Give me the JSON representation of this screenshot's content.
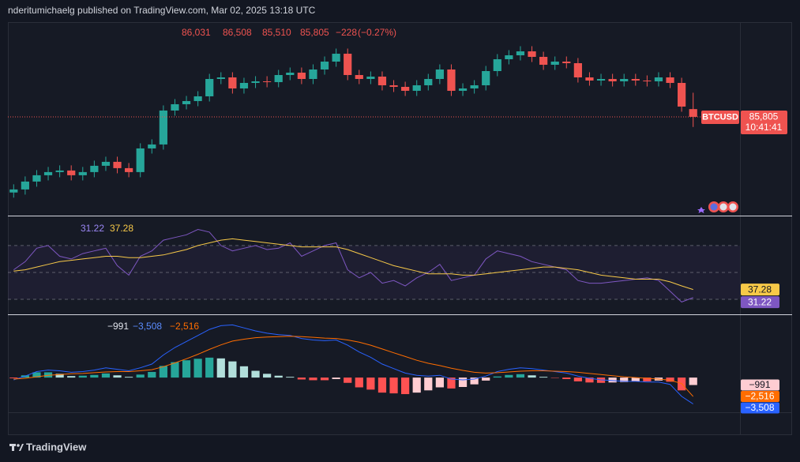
{
  "header": {
    "text": "nderitumichaelg published on TradingView.com, Mar 02, 2025 13:18 UTC"
  },
  "footer": {
    "brand": "TradingView"
  },
  "chart_data": [
    {
      "type": "candlestick",
      "symbol": "BTCUSD",
      "countdown": "10:41:41",
      "ohlc": {
        "open": {
          "value": 86031,
          "label": "86,031"
        },
        "high": {
          "value": 86508,
          "label": "86,508"
        },
        "low": {
          "value": 85510,
          "label": "85,510"
        },
        "close": {
          "value": 85805,
          "label": "85,805"
        }
      },
      "change": {
        "value": -228,
        "label": "−228"
      },
      "change_pct": {
        "value": -0.27,
        "label": "(−0.27%)"
      },
      "up_color": "#26a69a",
      "down_color": "#ef5350",
      "ylim": [
        82950,
        88520
      ],
      "open": [
        83600,
        83689,
        83919,
        84103,
        84195,
        84241,
        84103,
        84195,
        84379,
        84494,
        84310,
        84195,
        84885,
        85000,
        85989,
        86173,
        86265,
        86403,
        86909,
        86955,
        86633,
        86794,
        86840,
        86817,
        87024,
        87093,
        86909,
        87185,
        87415,
        87645,
        87024,
        86909,
        86978,
        86725,
        86679,
        86564,
        86725,
        86909,
        87185,
        86564,
        86633,
        86725,
        87139,
        87484,
        87599,
        87714,
        87553,
        87323,
        87415,
        87369,
        86955,
        86863,
        86909,
        86840,
        86909,
        86863,
        86840,
        86955,
        86794,
        86031
      ],
      "high": [
        83839,
        84069,
        84253,
        84345,
        84391,
        84391,
        84345,
        84529,
        84644,
        84644,
        84460,
        85035,
        85150,
        86139,
        86323,
        86415,
        86553,
        87059,
        87105,
        87105,
        86944,
        86990,
        86990,
        87174,
        87243,
        87243,
        87335,
        87565,
        87795,
        87795,
        87174,
        87128,
        87128,
        86875,
        86829,
        86875,
        87059,
        87335,
        87335,
        86783,
        86875,
        87289,
        87634,
        87749,
        87864,
        87864,
        87703,
        87565,
        87565,
        87519,
        87105,
        87059,
        87059,
        87059,
        87059,
        87013,
        87105,
        87105,
        86944,
        86508
      ],
      "low": [
        83450,
        83539,
        83769,
        83953,
        84045,
        83953,
        83953,
        84045,
        84229,
        84160,
        84045,
        84045,
        84735,
        84850,
        85839,
        86023,
        86115,
        86253,
        86759,
        86483,
        86483,
        86644,
        86667,
        86667,
        86874,
        86759,
        86759,
        87035,
        87265,
        86874,
        86759,
        86759,
        86575,
        86529,
        86414,
        86414,
        86575,
        86759,
        86414,
        86414,
        86483,
        86575,
        86989,
        87334,
        87449,
        87403,
        87173,
        87173,
        87219,
        86805,
        86713,
        86713,
        86690,
        86690,
        86713,
        86690,
        86690,
        86644,
        85954,
        85510
      ],
      "close": [
        83689,
        83919,
        84103,
        84195,
        84241,
        84103,
        84195,
        84379,
        84494,
        84310,
        84195,
        84885,
        85000,
        85989,
        86173,
        86265,
        86403,
        86909,
        86955,
        86633,
        86794,
        86840,
        86817,
        87024,
        87093,
        86909,
        87185,
        87415,
        87645,
        87024,
        86909,
        86978,
        86725,
        86679,
        86564,
        86725,
        86909,
        87185,
        86564,
        86633,
        86725,
        87139,
        87484,
        87599,
        87714,
        87553,
        87323,
        87415,
        87369,
        86955,
        86863,
        86909,
        86840,
        86909,
        86863,
        86840,
        86955,
        86794,
        86104,
        85805
      ]
    },
    {
      "type": "line",
      "ylim": [
        20,
        87
      ],
      "levels": [
        70,
        50,
        30
      ],
      "series": [
        {
          "color": "#7e57c2",
          "last": 31.22,
          "values": [
            52,
            58,
            68,
            70,
            62,
            60,
            64,
            66,
            68,
            55,
            48,
            62,
            66,
            74,
            76,
            78,
            82,
            80,
            70,
            66,
            68,
            70,
            67,
            68,
            72,
            62,
            66,
            70,
            72,
            52,
            46,
            50,
            42,
            44,
            40,
            46,
            50,
            56,
            44,
            46,
            48,
            60,
            66,
            64,
            62,
            58,
            56,
            54,
            52,
            44,
            42,
            42,
            43,
            44,
            45,
            46,
            44,
            36,
            28,
            31.22
          ]
        },
        {
          "color": "#f7c948",
          "last": 37.28,
          "values": [
            51,
            52,
            54,
            56,
            58,
            59,
            60,
            61,
            62,
            62,
            61,
            61,
            62,
            63,
            65,
            67,
            70,
            72,
            74,
            75,
            74,
            73,
            72,
            71,
            70,
            69,
            69,
            69,
            69,
            67,
            64,
            61,
            58,
            55,
            53,
            51,
            49,
            49,
            49,
            48,
            48,
            49,
            50,
            51,
            52,
            53,
            54,
            54,
            53,
            52,
            50,
            48,
            47,
            46,
            45,
            45,
            45,
            43,
            40,
            37.28
          ]
        }
      ]
    },
    {
      "type": "macd",
      "ylim": [
        -4400,
        8200
      ],
      "histogram": {
        "colors": [
          "#26a69a",
          "#b2dfdb",
          "#ff5252",
          "#ffcdd2"
        ],
        "last": {
          "value": -991,
          "label": "−991"
        },
        "values": [
          -100,
          300,
          700,
          700,
          500,
          200,
          250,
          350,
          550,
          300,
          100,
          400,
          750,
          1550,
          2050,
          2300,
          2500,
          2650,
          2550,
          2150,
          1500,
          900,
          500,
          250,
          100,
          -250,
          -350,
          -350,
          -200,
          -700,
          -1300,
          -1600,
          -2000,
          -2100,
          -2200,
          -2000,
          -1700,
          -1300,
          -1450,
          -1250,
          -900,
          -400,
          150,
          350,
          450,
          300,
          100,
          -50,
          -200,
          -500,
          -650,
          -700,
          -650,
          -600,
          -500,
          -500,
          -400,
          -550,
          -1700,
          -991
        ]
      },
      "series": [
        {
          "color": "#2962ff",
          "last": {
            "value": -3508,
            "label": "−3,508"
          },
          "values": [
            -300,
            200,
            800,
            1000,
            900,
            700,
            800,
            1000,
            1300,
            1100,
            900,
            1300,
            1800,
            3000,
            4000,
            4800,
            5600,
            6400,
            6900,
            7000,
            6600,
            6200,
            5900,
            5700,
            5600,
            5200,
            5000,
            4900,
            5000,
            4300,
            3400,
            2700,
            1800,
            1200,
            600,
            300,
            200,
            300,
            -200,
            -300,
            -200,
            200,
            800,
            1100,
            1300,
            1200,
            1000,
            800,
            600,
            200,
            -100,
            -300,
            -400,
            -500,
            -500,
            -600,
            -600,
            -900,
            -2500,
            -3508
          ]
        },
        {
          "color": "#ff6d00",
          "last": {
            "value": -2516,
            "label": "−2,516"
          },
          "values": [
            -200,
            -100,
            100,
            300,
            400,
            500,
            550,
            650,
            750,
            800,
            800,
            900,
            1050,
            1450,
            1950,
            2500,
            3100,
            3750,
            4350,
            4850,
            5100,
            5300,
            5400,
            5450,
            5500,
            5450,
            5350,
            5250,
            5200,
            5000,
            4700,
            4300,
            3800,
            3300,
            2800,
            2300,
            1900,
            1600,
            1250,
            950,
            700,
            600,
            650,
            750,
            850,
            900,
            900,
            850,
            800,
            700,
            550,
            400,
            250,
            100,
            0,
            -100,
            -200,
            -350,
            -800,
            -2516
          ]
        }
      ]
    }
  ]
}
